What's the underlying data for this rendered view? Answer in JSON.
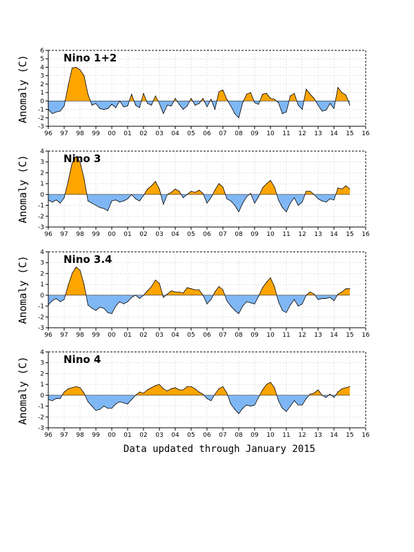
{
  "footer": "Data updated through January 2015",
  "colors": {
    "positive": "#ffa500",
    "negative": "#7fb7f5",
    "grid": "#aaaaaa",
    "line": "#000000"
  },
  "chart_data": [
    {
      "type": "area",
      "title": "Nino 1+2",
      "ylabel": "Anomaly (C)",
      "xlim": [
        96,
        16
      ],
      "ylim": [
        -3,
        6
      ],
      "x_ticks": [
        "96",
        "97",
        "98",
        "99",
        "00",
        "01",
        "02",
        "03",
        "04",
        "05",
        "06",
        "07",
        "08",
        "09",
        "10",
        "11",
        "12",
        "13",
        "14",
        "15",
        "16"
      ],
      "y_ticks": [
        "-3",
        "-2",
        "-1",
        "0",
        "1",
        "2",
        "3",
        "4",
        "5",
        "6"
      ],
      "grid": true,
      "x": [
        1996.0,
        1996.25,
        1996.5,
        1996.75,
        1997.0,
        1997.25,
        1997.5,
        1997.75,
        1998.0,
        1998.25,
        1998.5,
        1998.75,
        1999.0,
        1999.25,
        1999.5,
        1999.75,
        2000.0,
        2000.25,
        2000.5,
        2000.75,
        2001.0,
        2001.25,
        2001.5,
        2001.75,
        2002.0,
        2002.25,
        2002.5,
        2002.75,
        2003.0,
        2003.25,
        2003.5,
        2003.75,
        2004.0,
        2004.25,
        2004.5,
        2004.75,
        2005.0,
        2005.25,
        2005.5,
        2005.75,
        2006.0,
        2006.25,
        2006.5,
        2006.75,
        2007.0,
        2007.25,
        2007.5,
        2007.75,
        2008.0,
        2008.25,
        2008.5,
        2008.75,
        2009.0,
        2009.25,
        2009.5,
        2009.75,
        2010.0,
        2010.25,
        2010.5,
        2010.75,
        2011.0,
        2011.25,
        2011.5,
        2011.75,
        2012.0,
        2012.25,
        2012.5,
        2012.75,
        2013.0,
        2013.25,
        2013.5,
        2013.75,
        2014.0,
        2014.25,
        2014.5,
        2014.75,
        2015.0
      ],
      "values": [
        -1.0,
        -1.5,
        -1.3,
        -1.2,
        -0.6,
        1.8,
        3.9,
        4.0,
        3.7,
        3.0,
        0.8,
        -0.5,
        -0.3,
        -0.9,
        -1.0,
        -0.9,
        -0.4,
        -0.8,
        0.0,
        -0.7,
        -0.6,
        0.8,
        -0.5,
        -0.8,
        0.9,
        -0.3,
        -0.5,
        0.6,
        -0.3,
        -1.5,
        -0.5,
        -0.6,
        0.3,
        -0.4,
        -1.0,
        -0.6,
        0.3,
        -0.5,
        -0.3,
        0.3,
        -0.7,
        0.2,
        -1.0,
        1.1,
        1.3,
        0.2,
        -0.6,
        -1.5,
        -2.0,
        -0.2,
        0.8,
        1.0,
        -0.2,
        -0.4,
        0.8,
        0.9,
        0.3,
        0.2,
        -0.2,
        -1.5,
        -1.3,
        0.6,
        0.9,
        -0.5,
        -1.0,
        1.4,
        0.8,
        0.3,
        -0.5,
        -1.2,
        -1.1,
        -0.3,
        -0.9,
        1.6,
        1.0,
        0.7,
        -0.5
      ]
    },
    {
      "type": "area",
      "title": "Nino 3",
      "ylabel": "Anomaly (C)",
      "xlim": [
        96,
        16
      ],
      "ylim": [
        -3,
        4
      ],
      "x_ticks": [
        "96",
        "97",
        "98",
        "99",
        "00",
        "01",
        "02",
        "03",
        "04",
        "05",
        "06",
        "07",
        "08",
        "09",
        "10",
        "11",
        "12",
        "13",
        "14",
        "15",
        "16"
      ],
      "y_ticks": [
        "-3",
        "-2",
        "-1",
        "0",
        "1",
        "2",
        "3",
        "4"
      ],
      "grid": true,
      "x": [
        1996.0,
        1996.25,
        1996.5,
        1996.75,
        1997.0,
        1997.25,
        1997.5,
        1997.75,
        1998.0,
        1998.25,
        1998.5,
        1998.75,
        1999.0,
        1999.25,
        1999.5,
        1999.75,
        2000.0,
        2000.25,
        2000.5,
        2000.75,
        2001.0,
        2001.25,
        2001.5,
        2001.75,
        2002.0,
        2002.25,
        2002.5,
        2002.75,
        2003.0,
        2003.25,
        2003.5,
        2003.75,
        2004.0,
        2004.25,
        2004.5,
        2004.75,
        2005.0,
        2005.25,
        2005.5,
        2005.75,
        2006.0,
        2006.25,
        2006.5,
        2006.75,
        2007.0,
        2007.25,
        2007.5,
        2007.75,
        2008.0,
        2008.25,
        2008.5,
        2008.75,
        2009.0,
        2009.25,
        2009.5,
        2009.75,
        2010.0,
        2010.25,
        2010.5,
        2010.75,
        2011.0,
        2011.25,
        2011.5,
        2011.75,
        2012.0,
        2012.25,
        2012.5,
        2012.75,
        2013.0,
        2013.25,
        2013.5,
        2013.75,
        2014.0,
        2014.25,
        2014.5,
        2014.75,
        2015.0
      ],
      "values": [
        -0.5,
        -0.7,
        -0.5,
        -0.8,
        -0.3,
        1.2,
        2.9,
        3.5,
        3.0,
        1.5,
        -0.6,
        -0.8,
        -1.0,
        -1.2,
        -1.3,
        -1.5,
        -0.6,
        -0.5,
        -0.7,
        -0.6,
        -0.4,
        0.0,
        -0.4,
        -0.6,
        -0.1,
        0.5,
        0.8,
        1.2,
        0.5,
        -0.9,
        0.0,
        0.2,
        0.5,
        0.3,
        -0.3,
        0.0,
        0.3,
        0.2,
        0.4,
        0.1,
        -0.8,
        -0.3,
        0.4,
        1.0,
        0.7,
        -0.4,
        -0.6,
        -1.0,
        -1.6,
        -0.8,
        -0.2,
        0.1,
        -0.8,
        -0.2,
        0.6,
        1.0,
        1.3,
        0.7,
        -0.5,
        -1.2,
        -1.6,
        -0.8,
        -0.3,
        -1.0,
        -0.7,
        0.3,
        0.3,
        0.0,
        -0.4,
        -0.6,
        -0.7,
        -0.4,
        -0.5,
        0.6,
        0.5,
        0.8,
        0.5
      ]
    },
    {
      "type": "area",
      "title": "Nino 3.4",
      "ylabel": "Anomaly (C)",
      "xlim": [
        96,
        16
      ],
      "ylim": [
        -3,
        4
      ],
      "x_ticks": [
        "96",
        "97",
        "98",
        "99",
        "00",
        "01",
        "02",
        "03",
        "04",
        "05",
        "06",
        "07",
        "08",
        "09",
        "10",
        "11",
        "12",
        "13",
        "14",
        "15",
        "16"
      ],
      "y_ticks": [
        "-3",
        "-2",
        "-1",
        "0",
        "1",
        "2",
        "3",
        "4"
      ],
      "grid": true,
      "x": [
        1996.0,
        1996.25,
        1996.5,
        1996.75,
        1997.0,
        1997.25,
        1997.5,
        1997.75,
        1998.0,
        1998.25,
        1998.5,
        1998.75,
        1999.0,
        1999.25,
        1999.5,
        1999.75,
        2000.0,
        2000.25,
        2000.5,
        2000.75,
        2001.0,
        2001.25,
        2001.5,
        2001.75,
        2002.0,
        2002.25,
        2002.5,
        2002.75,
        2003.0,
        2003.25,
        2003.5,
        2003.75,
        2004.0,
        2004.25,
        2004.5,
        2004.75,
        2005.0,
        2005.25,
        2005.5,
        2005.75,
        2006.0,
        2006.25,
        2006.5,
        2006.75,
        2007.0,
        2007.25,
        2007.5,
        2007.75,
        2008.0,
        2008.25,
        2008.5,
        2008.75,
        2009.0,
        2009.25,
        2009.5,
        2009.75,
        2010.0,
        2010.25,
        2010.5,
        2010.75,
        2011.0,
        2011.25,
        2011.5,
        2011.75,
        2012.0,
        2012.25,
        2012.5,
        2012.75,
        2013.0,
        2013.25,
        2013.5,
        2013.75,
        2014.0,
        2014.25,
        2014.5,
        2014.75,
        2015.0
      ],
      "values": [
        -0.9,
        -0.5,
        -0.3,
        -0.6,
        -0.4,
        0.9,
        2.0,
        2.6,
        2.3,
        1.0,
        -0.9,
        -1.2,
        -1.4,
        -1.1,
        -1.2,
        -1.6,
        -1.7,
        -1.0,
        -0.6,
        -0.8,
        -0.6,
        -0.2,
        0.0,
        -0.3,
        0.0,
        0.4,
        0.8,
        1.4,
        1.1,
        -0.2,
        0.1,
        0.4,
        0.3,
        0.3,
        0.2,
        0.7,
        0.6,
        0.5,
        0.5,
        0.0,
        -0.8,
        -0.4,
        0.3,
        0.8,
        0.5,
        -0.5,
        -1.0,
        -1.4,
        -1.7,
        -1.0,
        -0.6,
        -0.7,
        -0.8,
        -0.1,
        0.7,
        1.2,
        1.6,
        0.8,
        -0.6,
        -1.4,
        -1.6,
        -0.9,
        -0.4,
        -1.0,
        -0.8,
        0.0,
        0.3,
        0.1,
        -0.4,
        -0.3,
        -0.3,
        -0.2,
        -0.5,
        0.1,
        0.3,
        0.6,
        0.6
      ]
    },
    {
      "type": "area",
      "title": "Nino 4",
      "ylabel": "Anomaly (C)",
      "xlim": [
        96,
        16
      ],
      "ylim": [
        -3,
        4
      ],
      "x_ticks": [
        "96",
        "97",
        "98",
        "99",
        "00",
        "01",
        "02",
        "03",
        "04",
        "05",
        "06",
        "07",
        "08",
        "09",
        "10",
        "11",
        "12",
        "13",
        "14",
        "15",
        "16"
      ],
      "y_ticks": [
        "-3",
        "-2",
        "-1",
        "0",
        "1",
        "2",
        "3",
        "4"
      ],
      "grid": true,
      "x": [
        1996.0,
        1996.25,
        1996.5,
        1996.75,
        1997.0,
        1997.25,
        1997.5,
        1997.75,
        1998.0,
        1998.25,
        1998.5,
        1998.75,
        1999.0,
        1999.25,
        1999.5,
        1999.75,
        2000.0,
        2000.25,
        2000.5,
        2000.75,
        2001.0,
        2001.25,
        2001.5,
        2001.75,
        2002.0,
        2002.25,
        2002.5,
        2002.75,
        2003.0,
        2003.25,
        2003.5,
        2003.75,
        2004.0,
        2004.25,
        2004.5,
        2004.75,
        2005.0,
        2005.25,
        2005.5,
        2005.75,
        2006.0,
        2006.25,
        2006.5,
        2006.75,
        2007.0,
        2007.25,
        2007.5,
        2007.75,
        2008.0,
        2008.25,
        2008.5,
        2008.75,
        2009.0,
        2009.25,
        2009.5,
        2009.75,
        2010.0,
        2010.25,
        2010.5,
        2010.75,
        2011.0,
        2011.25,
        2011.5,
        2011.75,
        2012.0,
        2012.25,
        2012.5,
        2012.75,
        2013.0,
        2013.25,
        2013.5,
        2013.75,
        2014.0,
        2014.25,
        2014.5,
        2014.75,
        2015.0
      ],
      "values": [
        -0.4,
        -0.5,
        -0.3,
        -0.3,
        0.3,
        0.6,
        0.7,
        0.8,
        0.7,
        0.2,
        -0.6,
        -1.0,
        -1.4,
        -1.3,
        -1.0,
        -1.2,
        -1.2,
        -0.8,
        -0.6,
        -0.7,
        -0.8,
        -0.4,
        0.0,
        0.3,
        0.2,
        0.5,
        0.7,
        0.9,
        1.0,
        0.6,
        0.4,
        0.6,
        0.7,
        0.5,
        0.5,
        0.8,
        0.8,
        0.6,
        0.3,
        0.1,
        -0.3,
        -0.5,
        0.1,
        0.6,
        0.8,
        0.2,
        -0.8,
        -1.3,
        -1.7,
        -1.2,
        -0.9,
        -1.0,
        -0.9,
        -0.2,
        0.5,
        1.0,
        1.2,
        0.7,
        -0.5,
        -1.2,
        -1.5,
        -1.0,
        -0.5,
        -0.9,
        -0.9,
        -0.3,
        0.1,
        0.2,
        0.5,
        0.0,
        -0.2,
        0.1,
        -0.2,
        0.3,
        0.6,
        0.7,
        0.8
      ]
    }
  ]
}
